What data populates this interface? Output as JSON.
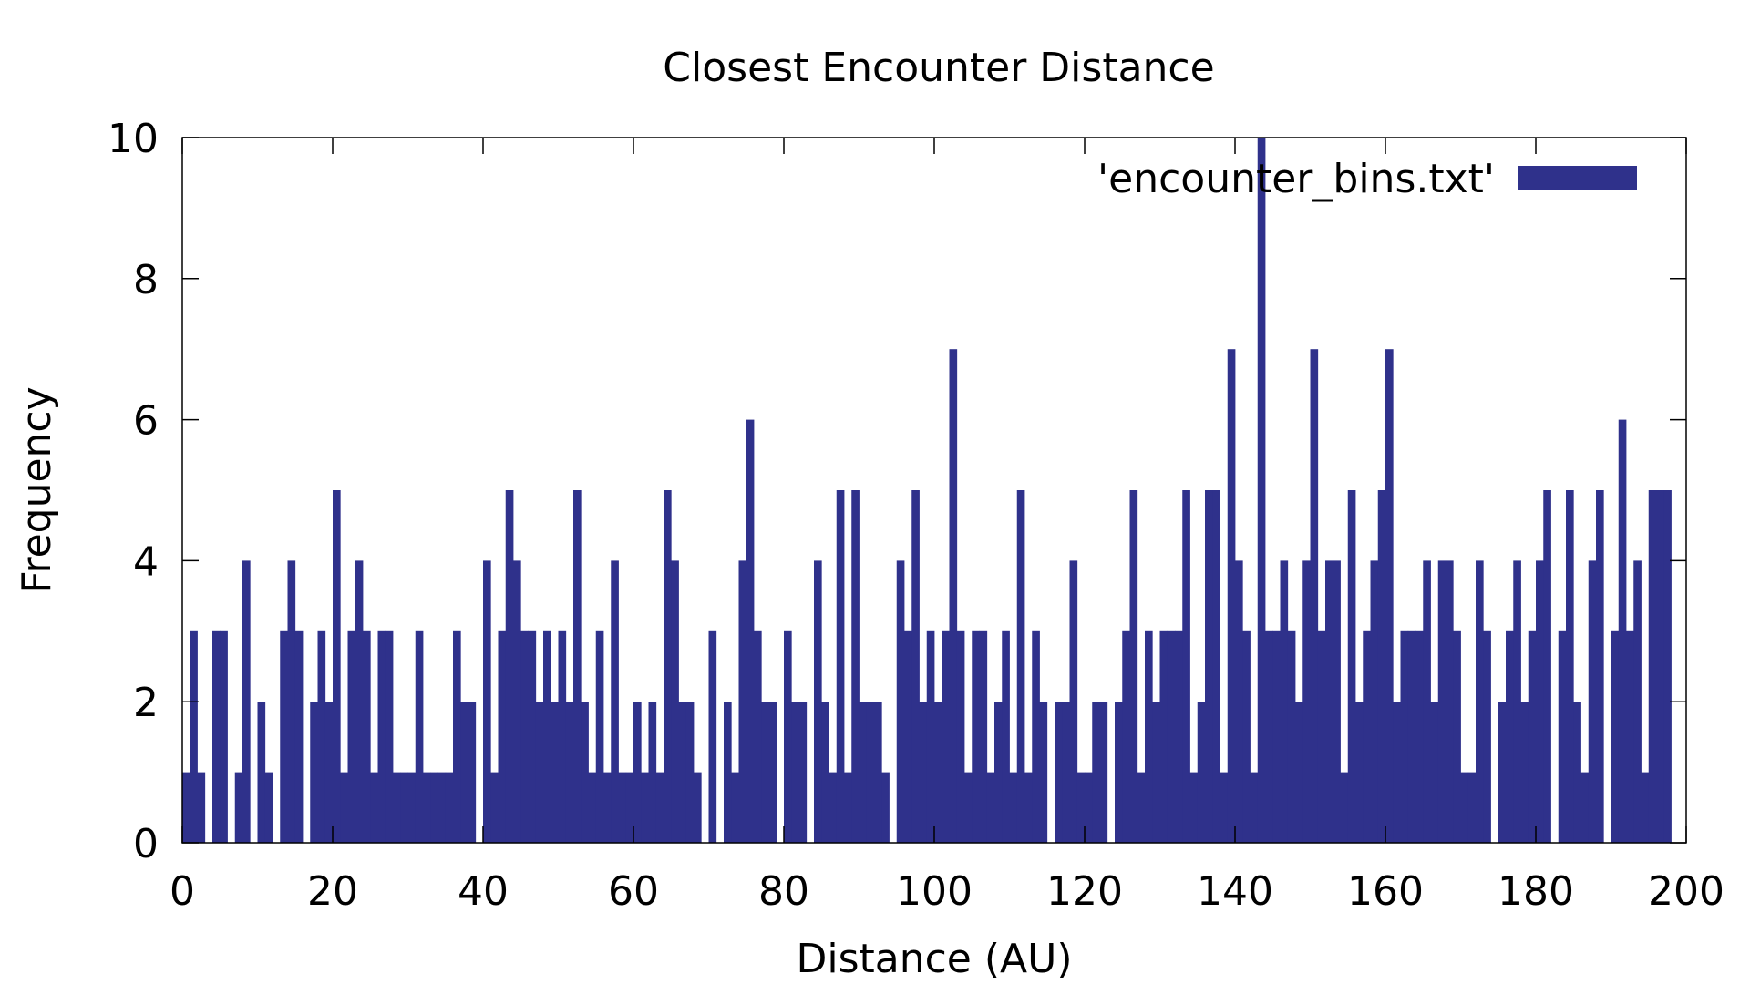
{
  "colors": {
    "bar": "#2f318b",
    "axis": "#000000",
    "background": "#ffffff"
  },
  "chart_data": {
    "type": "bar",
    "title": "Closest Encounter Distance",
    "xlabel": "Distance (AU)",
    "ylabel": "Frequency",
    "xlim": [
      0,
      200
    ],
    "ylim": [
      0,
      10
    ],
    "x_ticks": [
      0,
      20,
      40,
      60,
      80,
      100,
      120,
      140,
      160,
      180,
      200
    ],
    "y_ticks": [
      0,
      2,
      4,
      6,
      8,
      10
    ],
    "grid": false,
    "legend_position": "top-right",
    "bin_width": 1,
    "series": [
      {
        "name": "'encounter_bins.txt'",
        "x": [
          0,
          1,
          2,
          3,
          4,
          5,
          6,
          7,
          8,
          9,
          10,
          11,
          12,
          13,
          14,
          15,
          16,
          17,
          18,
          19,
          20,
          21,
          22,
          23,
          24,
          25,
          26,
          27,
          28,
          29,
          30,
          31,
          32,
          33,
          34,
          35,
          36,
          37,
          38,
          39,
          40,
          41,
          42,
          43,
          44,
          45,
          46,
          47,
          48,
          49,
          50,
          51,
          52,
          53,
          54,
          55,
          56,
          57,
          58,
          59,
          60,
          61,
          62,
          63,
          64,
          65,
          66,
          67,
          68,
          69,
          70,
          71,
          72,
          73,
          74,
          75,
          76,
          77,
          78,
          79,
          80,
          81,
          82,
          83,
          84,
          85,
          86,
          87,
          88,
          89,
          90,
          91,
          92,
          93,
          94,
          95,
          96,
          97,
          98,
          99,
          100,
          101,
          102,
          103,
          104,
          105,
          106,
          107,
          108,
          109,
          110,
          111,
          112,
          113,
          114,
          115,
          116,
          117,
          118,
          119,
          120,
          121,
          122,
          123,
          124,
          125,
          126,
          127,
          128,
          129,
          130,
          131,
          132,
          133,
          134,
          135,
          136,
          137,
          138,
          139,
          140,
          141,
          142,
          143,
          144,
          145,
          146,
          147,
          148,
          149,
          150,
          151,
          152,
          153,
          154,
          155,
          156,
          157,
          158,
          159,
          160,
          161,
          162,
          163,
          164,
          165,
          166,
          167,
          168,
          169,
          170,
          171,
          172,
          173,
          174,
          175,
          176,
          177,
          178,
          179,
          180,
          181,
          182,
          183,
          184,
          185,
          186,
          187,
          188,
          189,
          190,
          191,
          192,
          193,
          194,
          195,
          196,
          197
        ],
        "values": [
          1,
          3,
          1,
          0,
          3,
          3,
          0,
          1,
          4,
          0,
          2,
          1,
          0,
          3,
          4,
          3,
          0,
          2,
          3,
          2,
          5,
          1,
          3,
          4,
          3,
          1,
          3,
          3,
          1,
          1,
          1,
          3,
          1,
          1,
          1,
          1,
          3,
          2,
          2,
          0,
          4,
          1,
          3,
          5,
          4,
          3,
          3,
          2,
          3,
          2,
          3,
          2,
          5,
          2,
          1,
          3,
          1,
          4,
          1,
          1,
          2,
          1,
          2,
          1,
          5,
          4,
          2,
          2,
          1,
          0,
          3,
          0,
          2,
          1,
          4,
          6,
          3,
          2,
          2,
          0,
          3,
          2,
          2,
          0,
          4,
          2,
          1,
          5,
          1,
          5,
          2,
          2,
          2,
          1,
          0,
          4,
          3,
          5,
          2,
          3,
          2,
          3,
          7,
          3,
          1,
          3,
          3,
          1,
          2,
          3,
          1,
          5,
          1,
          3,
          2,
          0,
          2,
          2,
          4,
          1,
          1,
          2,
          2,
          0,
          2,
          3,
          5,
          1,
          3,
          2,
          3,
          3,
          3,
          5,
          1,
          2,
          5,
          5,
          1,
          7,
          4,
          3,
          1,
          10,
          3,
          3,
          4,
          3,
          2,
          4,
          7,
          3,
          4,
          4,
          1,
          5,
          2,
          3,
          4,
          5,
          7,
          2,
          3,
          3,
          3,
          4,
          2,
          4,
          4,
          3,
          1,
          1,
          4,
          3,
          0,
          2,
          3,
          4,
          2,
          3,
          4,
          5,
          0,
          3,
          5,
          2,
          1,
          4,
          5,
          0,
          3,
          6,
          3,
          4,
          1,
          5,
          5,
          5
        ]
      }
    ]
  }
}
